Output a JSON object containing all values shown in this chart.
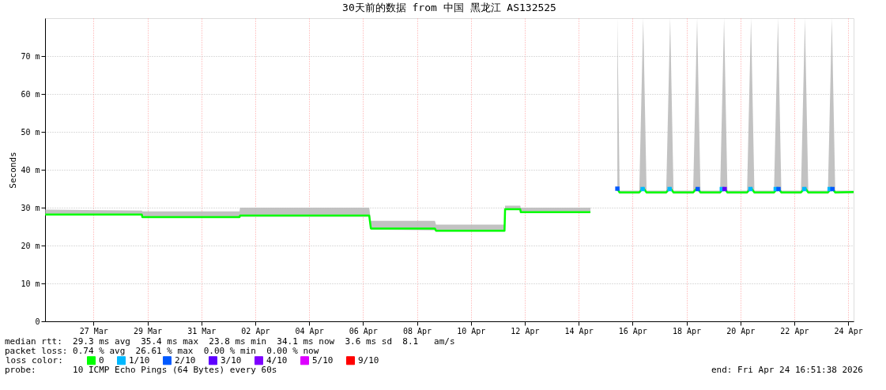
{
  "chart_data": {
    "type": "line",
    "title": "30天前的数据 from 中国 黑龙江 AS132525",
    "ylabel": "Seconds",
    "xlim": [
      "2026-03-25T16:51",
      "2026-04-24T16:51"
    ],
    "xticks": [
      {
        "value": "2026-03-27T12:00",
        "label": "27 Mar"
      },
      {
        "value": "2026-03-29T12:00",
        "label": "29 Mar"
      },
      {
        "value": "2026-03-31T12:00",
        "label": "31 Mar"
      },
      {
        "value": "2026-04-02T12:00",
        "label": "02 Apr"
      },
      {
        "value": "2026-04-04T12:00",
        "label": "04 Apr"
      },
      {
        "value": "2026-04-06T12:00",
        "label": "06 Apr"
      },
      {
        "value": "2026-04-08T12:00",
        "label": "08 Apr"
      },
      {
        "value": "2026-04-10T12:00",
        "label": "10 Apr"
      },
      {
        "value": "2026-04-12T12:00",
        "label": "12 Apr"
      },
      {
        "value": "2026-04-14T12:00",
        "label": "14 Apr"
      },
      {
        "value": "2026-04-16T12:00",
        "label": "16 Apr"
      },
      {
        "value": "2026-04-18T12:00",
        "label": "18 Apr"
      },
      {
        "value": "2026-04-20T12:00",
        "label": "20 Apr"
      },
      {
        "value": "2026-04-22T12:00",
        "label": "22 Apr"
      },
      {
        "value": "2026-04-24T12:00",
        "label": "24 Apr"
      }
    ],
    "ylim": [
      0,
      80
    ],
    "yticks": [
      0,
      {
        "value": 10,
        "label": "10 m"
      },
      {
        "value": 20,
        "label": "20 m"
      },
      {
        "value": 30,
        "label": "30 m"
      },
      {
        "value": 40,
        "label": "40 m"
      },
      {
        "value": 50,
        "label": "50 m"
      },
      {
        "value": 60,
        "label": "60 m"
      },
      {
        "value": 70,
        "label": "70 m"
      }
    ],
    "grid": true,
    "legend": "bottom",
    "legend_title": "loss color:",
    "series": [
      {
        "name": "0",
        "type": "line",
        "color": "#00ff00",
        "x": [
          "2026-03-25T17:00",
          "2026-03-29T07:00",
          "2026-03-29T07:30",
          "2026-04-01T22:00",
          "2026-04-01T22:30",
          "2026-04-06T17:30",
          "2026-04-06T19:00",
          "2026-04-09T04:00",
          "2026-04-09T05:00",
          "2026-04-11T18:00",
          "2026-04-11T18:30",
          "2026-04-12T08:00",
          "2026-04-12T08:30",
          "2026-04-14T22:30",
          "2026-04-15T10:00",
          "2026-04-15T22:30",
          "2026-04-16T00:30",
          "2026-04-16T18:00",
          "2026-04-16T21:30",
          "2026-04-17T00:30",
          "2026-04-17T18:00",
          "2026-04-17T21:30",
          "2026-04-18T00:30",
          "2026-04-18T18:00",
          "2026-04-18T21:30",
          "2026-04-19T00:30",
          "2026-04-19T18:00",
          "2026-04-19T21:30",
          "2026-04-20T00:30",
          "2026-04-20T18:00",
          "2026-04-20T21:30",
          "2026-04-21T00:30",
          "2026-04-21T18:00",
          "2026-04-21T21:30",
          "2026-04-22T00:30",
          "2026-04-22T18:00",
          "2026-04-22T21:30",
          "2026-04-23T00:30",
          "2026-04-23T18:00",
          "2026-04-23T21:30",
          "2026-04-24T00:30",
          "2026-04-24T16:50"
        ],
        "values": [
          28.2,
          28.2,
          27.5,
          27.5,
          27.9,
          27.9,
          24.5,
          24.5,
          23.9,
          23.9,
          29.6,
          29.6,
          28.8,
          28.8,
          null,
          35,
          34,
          34,
          35.2,
          34,
          34,
          35.2,
          34,
          34,
          35.2,
          34,
          34,
          35.2,
          34,
          34,
          35.2,
          34,
          34,
          35.2,
          34,
          34,
          35.2,
          34,
          34,
          35.2,
          34,
          34.1
        ],
        "lower": [
          28,
          28,
          27.3,
          27.3,
          27.6,
          27.6,
          24.2,
          24,
          23.7,
          23.7,
          29.4,
          29.4,
          28.6,
          28.6,
          null,
          34.5,
          33.7,
          33.7,
          34.8,
          33.7,
          33.7,
          34.8,
          33.7,
          33.7,
          34.8,
          33.7,
          33.7,
          34.8,
          33.7,
          33.7,
          34.8,
          33.7,
          33.7,
          34.8,
          33.7,
          33.7,
          34.8,
          33.7,
          33.7,
          34.8,
          33.7,
          33.8
        ],
        "upper": [
          29.5,
          29.2,
          29,
          29,
          30,
          30,
          26.5,
          26.5,
          25.5,
          25.5,
          30.5,
          30.5,
          30,
          30,
          null,
          80,
          34.5,
          34.5,
          80,
          34.5,
          34.5,
          80,
          34.5,
          34.5,
          80,
          34.5,
          34.5,
          80,
          34.5,
          34.5,
          80,
          34.5,
          34.5,
          80,
          34.5,
          34.5,
          80,
          34.5,
          34.5,
          80,
          34.5,
          34.5
        ]
      },
      {
        "name": "1/10",
        "type": "scatter",
        "marker": "square",
        "color": "#00b8ff",
        "x": [
          "2026-04-16T21:00",
          "2026-04-17T21:00",
          "2026-04-19T19:30",
          "2026-04-20T21:00",
          "2026-04-21T19:30",
          "2026-04-22T21:00",
          "2026-04-23T19:30"
        ],
        "values": [
          34.9,
          34.9,
          34.9,
          34.9,
          34.9,
          34.9,
          34.9
        ]
      },
      {
        "name": "2/10",
        "type": "scatter",
        "marker": "square",
        "color": "#0059ff",
        "x": [
          "2026-04-15T22:30",
          "2026-04-18T22:00",
          "2026-04-21T22:00",
          "2026-04-23T22:00"
        ],
        "values": [
          35,
          34.9,
          34.9,
          34.9
        ]
      },
      {
        "name": "3/10",
        "type": "scatter",
        "marker": "square",
        "color": "#5e00ff",
        "x": [
          "2026-04-19T22:00"
        ],
        "values": [
          34.9
        ]
      },
      {
        "name": "4/10",
        "type": "scatter",
        "marker": "square",
        "color": "#7e00ff"
      },
      {
        "name": "5/10",
        "type": "scatter",
        "marker": "square",
        "color": "#dd00ff"
      },
      {
        "name": "9/10",
        "type": "scatter",
        "marker": "square",
        "color": "#ff0000"
      }
    ],
    "annotations": [
      "median rtt:  29.3 ms avg  35.4 ms max  23.8 ms min  34.1 ms now  3.6 ms sd  8.1   am/s",
      "packet loss: 0.74 % avg  26.61 % max  0.00 % min  0.00 % now",
      "probe:       10 ICMP Echo Pings (64 Bytes) every 60s",
      "end: Fri Apr 24 16:51:38 2026"
    ]
  }
}
